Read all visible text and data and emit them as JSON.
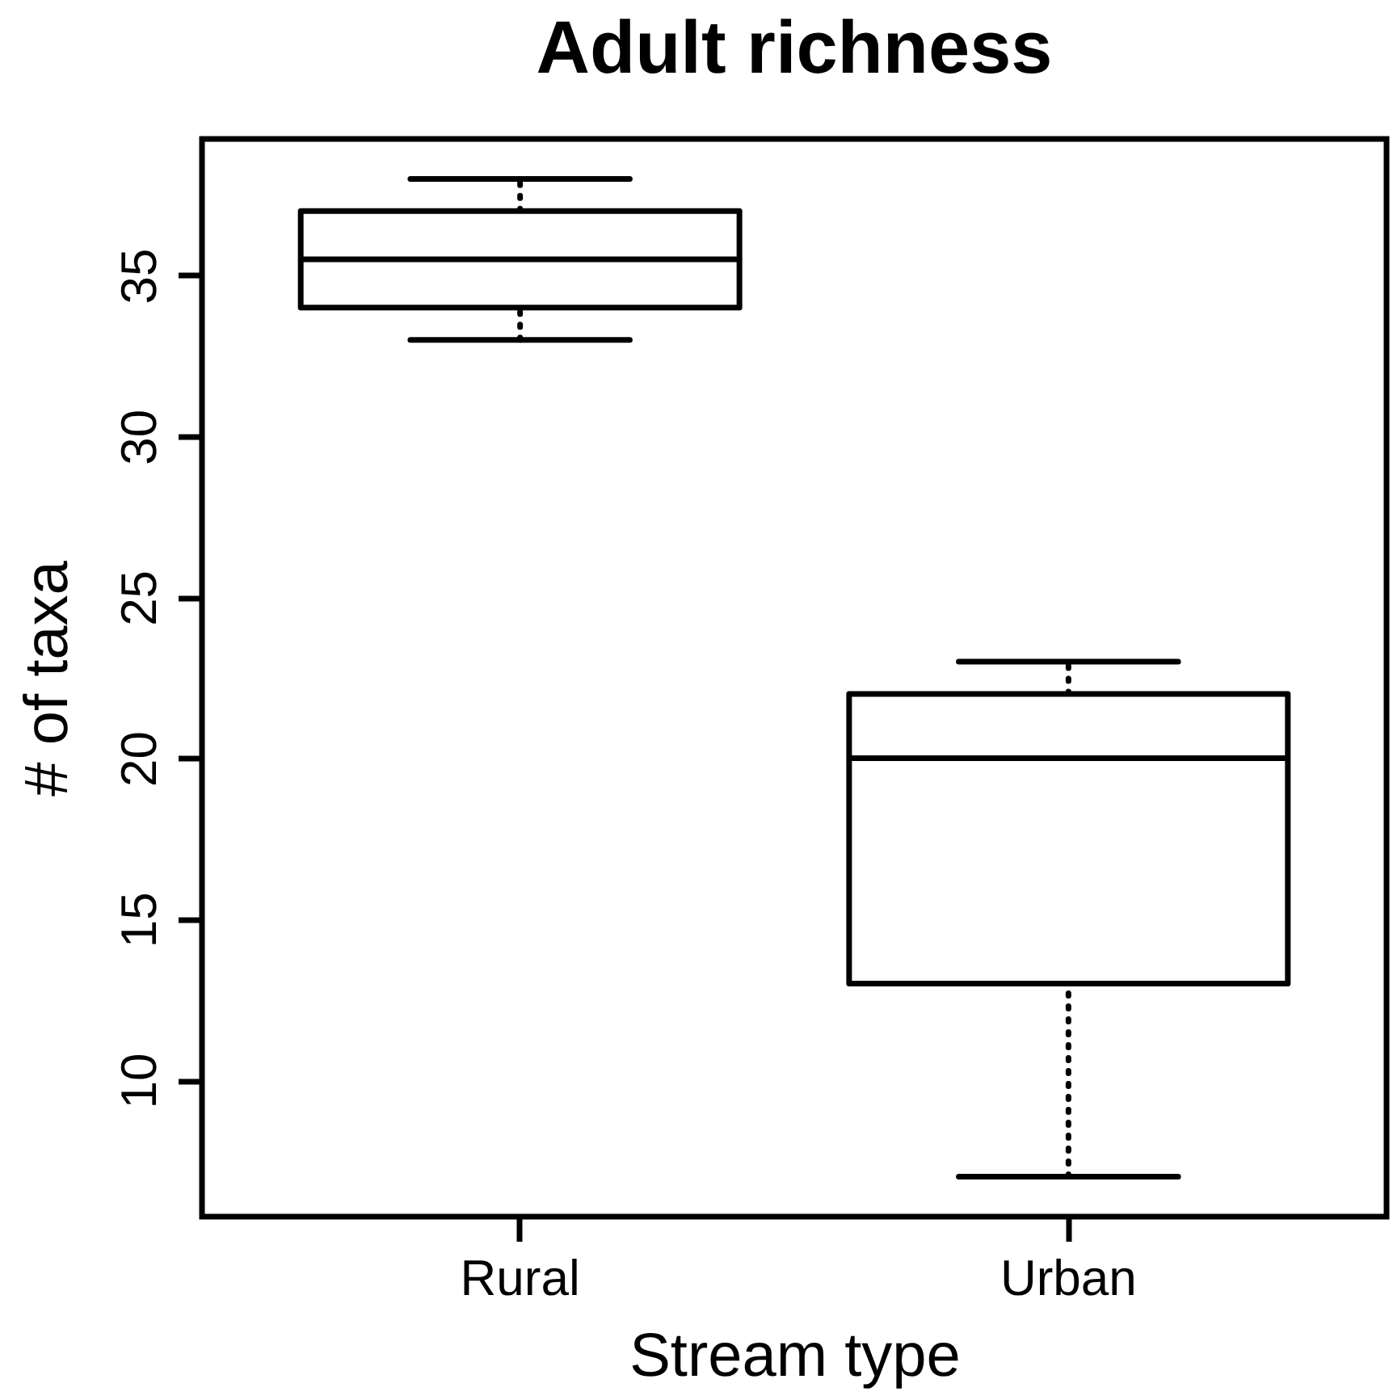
{
  "chart_data": {
    "type": "box",
    "title": "Adult richness",
    "xlabel": "Stream type",
    "ylabel": "# of taxa",
    "categories": [
      "Rural",
      "Urban"
    ],
    "boxes": [
      {
        "low": 33,
        "q1": 34,
        "median": 35.5,
        "q3": 37,
        "high": 38
      },
      {
        "low": 7,
        "q1": 13,
        "median": 20,
        "q3": 22,
        "high": 23
      }
    ],
    "ylim": [
      5.76,
      39.24
    ],
    "yticks": [
      10,
      15,
      20,
      25,
      30,
      35
    ]
  }
}
